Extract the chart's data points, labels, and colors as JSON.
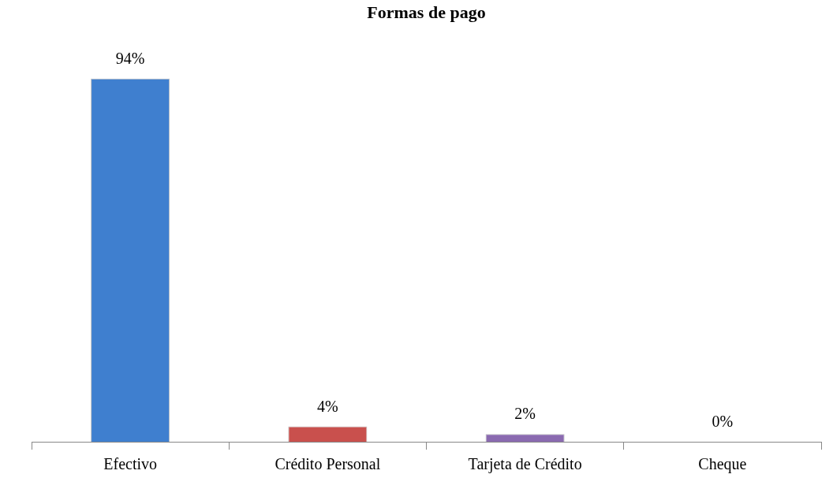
{
  "chart_data": {
    "type": "bar",
    "title": "Formas de pago",
    "categories": [
      "Efectivo",
      "Crédito Personal",
      "Tarjeta de Crédito",
      "Cheque"
    ],
    "values": [
      94,
      4,
      2,
      0
    ],
    "colors": [
      "#3f7fcf",
      "#c9504d",
      "#8a6ab0",
      "#9bbb59"
    ],
    "value_labels": [
      "94%",
      "4%",
      "2%",
      "0%"
    ],
    "grid": false,
    "legend": false
  }
}
